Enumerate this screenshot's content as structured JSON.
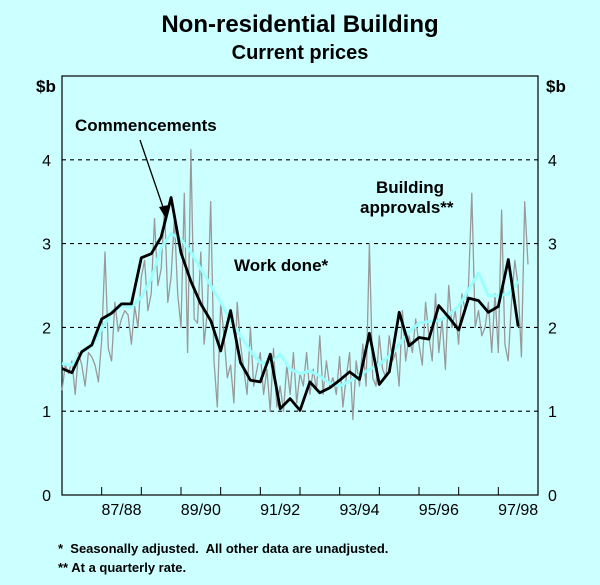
{
  "chart_data": {
    "type": "line",
    "title": "Non-residential Building",
    "subtitle": "Current prices",
    "y_unit_left": "$b",
    "y_unit_right": "$b",
    "ylim": [
      0,
      5
    ],
    "yticks": [
      0,
      1,
      2,
      3,
      4
    ],
    "ytick_labels": [
      "0",
      "1",
      "2",
      "3",
      "4"
    ],
    "xlim": [
      0,
      48
    ],
    "x_tick_labels": [
      {
        "label": "87/88",
        "at": 6
      },
      {
        "label": "89/90",
        "at": 14
      },
      {
        "label": "91/92",
        "at": 22
      },
      {
        "label": "93/94",
        "at": 30
      },
      {
        "label": "95/96",
        "at": 38
      },
      {
        "label": "97/98",
        "at": 46
      }
    ],
    "annotations": [
      {
        "text": "Commencements",
        "series": "Commencements"
      },
      {
        "text": "Work done*",
        "series": "Work done"
      },
      {
        "text": "Building",
        "series": "Building approvals"
      },
      {
        "text": "approvals**",
        "series": "Building approvals"
      }
    ],
    "series": [
      {
        "name": "Commencements",
        "color": "#000000",
        "x_step": 1,
        "x_start": 0,
        "values": [
          1.51,
          1.46,
          1.71,
          1.79,
          2.1,
          2.17,
          2.28,
          2.28,
          2.83,
          2.88,
          3.08,
          3.55,
          2.89,
          2.55,
          2.28,
          2.08,
          1.72,
          2.2,
          1.58,
          1.37,
          1.35,
          1.68,
          1.03,
          1.15,
          1.01,
          1.35,
          1.22,
          1.28,
          1.37,
          1.47,
          1.38,
          1.93,
          1.32,
          1.47,
          2.18,
          1.78,
          1.88,
          1.86,
          2.26,
          2.12,
          1.97,
          2.35,
          2.32,
          2.18,
          2.25,
          2.81,
          2.01
        ]
      },
      {
        "name": "Work done",
        "color": "#99ffff",
        "x_step": 1,
        "x_start": 0,
        "values": [
          1.57,
          1.55,
          1.7,
          1.78,
          1.98,
          2.18,
          2.26,
          2.24,
          2.36,
          2.58,
          2.95,
          3.12,
          3.05,
          2.9,
          2.7,
          2.5,
          2.3,
          2.08,
          1.9,
          1.72,
          1.58,
          1.58,
          1.68,
          1.5,
          1.45,
          1.48,
          1.42,
          1.33,
          1.3,
          1.36,
          1.43,
          1.5,
          1.56,
          1.66,
          1.8,
          1.95,
          2.05,
          2.07,
          2.08,
          2.15,
          2.25,
          2.45,
          2.65,
          2.38,
          2.38,
          2.4,
          2.55
        ]
      },
      {
        "name": "Building approvals",
        "color": "#999999",
        "x_step": 0.3333,
        "x_start": 0,
        "values": [
          1.25,
          1.55,
          1.45,
          1.6,
          1.2,
          1.7,
          1.55,
          1.3,
          1.7,
          1.65,
          1.55,
          1.35,
          1.85,
          2.9,
          1.75,
          1.6,
          2.3,
          1.95,
          2.1,
          2.2,
          2.15,
          1.8,
          2.25,
          2.0,
          2.6,
          2.8,
          2.2,
          2.4,
          3.3,
          2.5,
          2.7,
          3.45,
          2.3,
          2.6,
          3.3,
          2.4,
          2.0,
          3.6,
          1.7,
          4.12,
          2.1,
          2.05,
          2.9,
          1.8,
          2.2,
          3.5,
          1.6,
          1.05,
          2.3,
          1.9,
          1.4,
          1.55,
          1.1,
          2.3,
          1.8,
          1.5,
          1.2,
          2.0,
          1.3,
          1.5,
          1.7,
          1.2,
          1.5,
          1.0,
          1.75,
          1.05,
          1.3,
          1.0,
          1.55,
          1.2,
          1.7,
          1.1,
          1.45,
          1.3,
          1.7,
          1.2,
          1.5,
          1.25,
          1.9,
          1.2,
          1.6,
          1.3,
          1.4,
          1.2,
          1.65,
          1.05,
          1.4,
          1.7,
          0.9,
          1.6,
          1.3,
          1.8,
          1.3,
          3.0,
          1.4,
          1.3,
          1.9,
          1.5,
          1.4,
          1.9,
          1.6,
          1.7,
          1.3,
          2.2,
          1.6,
          1.9,
          1.7,
          2.1,
          1.8,
          1.55,
          2.3,
          1.9,
          1.6,
          2.4,
          1.7,
          2.1,
          1.5,
          2.5,
          2.0,
          2.2,
          1.8,
          2.4,
          2.2,
          2.5,
          3.6,
          2.0,
          2.2,
          1.9,
          2.0,
          2.3,
          1.7,
          2.4,
          1.7,
          3.4,
          1.8,
          1.6,
          2.3,
          2.8,
          2.5,
          1.65,
          3.5,
          2.75
        ]
      }
    ]
  },
  "footnotes": [
    "*  Seasonally adjusted.  All other data are unadjusted.",
    "** At a quarterly rate."
  ]
}
